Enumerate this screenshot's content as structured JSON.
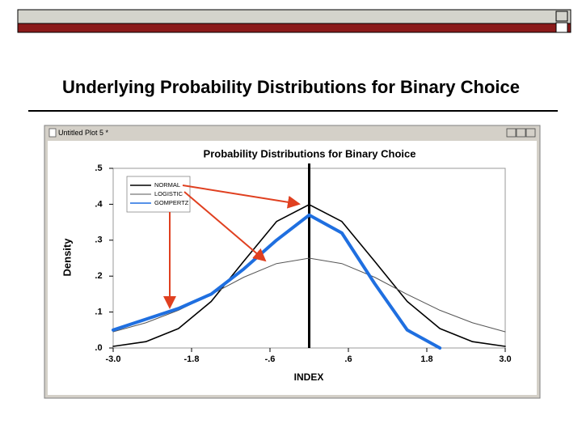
{
  "slide": {
    "title": "Underlying Probability Distributions for Binary Choice"
  },
  "window": {
    "title": "Untitled Plot 5 *"
  },
  "chart_data": {
    "type": "line",
    "title": "Probability Distributions for Binary Choice",
    "x_label": "INDEX",
    "y_label": "Density",
    "x": [
      -3.0,
      -2.5,
      -2.0,
      -1.5,
      -1.0,
      -0.5,
      0.0,
      0.5,
      1.0,
      1.5,
      2.0,
      2.5,
      3.0
    ],
    "series": [
      {
        "name": "NORMAL",
        "color": "#000000",
        "width": 1.6,
        "dash": "none",
        "values": [
          0.0044,
          0.0175,
          0.054,
          0.1295,
          0.242,
          0.352,
          0.399,
          0.352,
          0.242,
          0.1295,
          0.054,
          0.0175,
          0.0044
        ]
      },
      {
        "name": "LOGISTIC",
        "color": "#555555",
        "width": 1,
        "dash": "none",
        "values": [
          0.045,
          0.07,
          0.105,
          0.149,
          0.197,
          0.235,
          0.25,
          0.235,
          0.197,
          0.149,
          0.105,
          0.07,
          0.045
        ]
      },
      {
        "name": "GOMPERTZ",
        "color": "#1f6fe0",
        "width": 4,
        "dash": "none",
        "values": [
          0.05,
          0.08,
          0.11,
          0.15,
          0.22,
          0.3,
          0.37,
          0.32,
          0.18,
          0.05,
          0.0,
          null,
          null
        ]
      }
    ],
    "xlim": [
      -3.0,
      3.0
    ],
    "xticks": [
      {
        "value": -3.0,
        "label": "-3.0"
      },
      {
        "value": -1.8,
        "label": "-1.8"
      },
      {
        "value": -0.6,
        "label": "-.6"
      },
      {
        "value": 0.6,
        "label": ".6"
      },
      {
        "value": 1.8,
        "label": "1.8"
      },
      {
        "value": 3.0,
        "label": "3.0"
      }
    ],
    "ylim": [
      0,
      0.5
    ],
    "yticks": [
      {
        "value": 0,
        "label": ".0"
      },
      {
        "value": 0.1,
        "label": ".1"
      },
      {
        "value": 0.2,
        "label": ".2"
      },
      {
        "value": 0.3,
        "label": ".3"
      },
      {
        "value": 0.4,
        "label": ".4"
      },
      {
        "value": 0.5,
        "label": ".5"
      }
    ],
    "vline": 0,
    "legend": "upper left"
  }
}
